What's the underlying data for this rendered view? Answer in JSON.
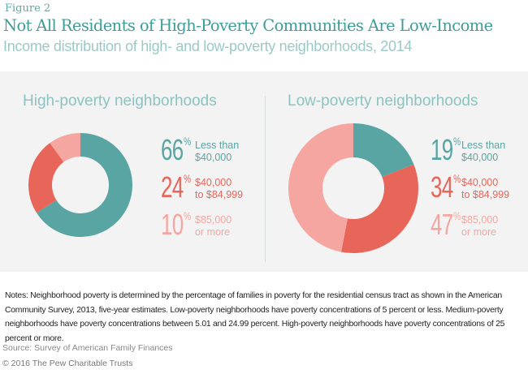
{
  "figure_label": "Figure 2",
  "title": "Not All Residents of High-Poverty Communities Are Low-Income",
  "subtitle": "Income distribution of high- and low-poverty neighborhoods, 2014",
  "chart_data": [
    {
      "type": "pie",
      "donut": true,
      "title": "High-poverty neighborhoods",
      "categories": [
        "Less than $40,000",
        "$40,000 to $84,999",
        "$85,000 or more"
      ],
      "values": [
        66,
        24,
        10
      ],
      "colors": [
        "#58a5a3",
        "#e8655a",
        "#f5a6a1"
      ],
      "legend_placement": "right"
    },
    {
      "type": "pie",
      "donut": true,
      "title": "Low-poverty neighborhoods",
      "categories": [
        "Less than $40,000",
        "$40,000 to $84,999",
        "$85,000 or more"
      ],
      "values": [
        19,
        34,
        47
      ],
      "colors": [
        "#58a5a3",
        "#e8655a",
        "#f5a6a1"
      ],
      "legend_placement": "right"
    }
  ],
  "legend": {
    "percent_sign": "%",
    "labels": [
      [
        "Less than",
        "$40,000"
      ],
      [
        "$40,000",
        "to $84,999"
      ],
      [
        "$85,000",
        "or more"
      ]
    ]
  },
  "notes": "Notes: Neighborhood poverty is determined by the percentage of families in poverty for the residential census tract as shown in the American Community Survey, 2013, five-year estimates. Low-poverty neighborhoods have poverty concentrations of 5 percent or less. Medium-poverty neighborhoods have poverty concentrations between 5.01 and 24.99 percent. High-poverty neighborhoods have poverty concentrations of 25 percent or more.",
  "source": "Source: Survey of American Family Finances",
  "copyright": "© 2016 The Pew Charitable Trusts"
}
